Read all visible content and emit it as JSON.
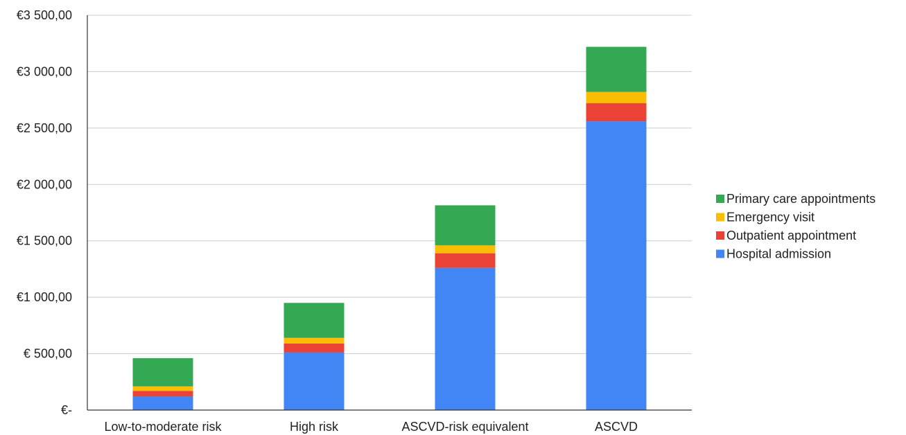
{
  "chart_data": {
    "type": "bar",
    "stacked": true,
    "title": "",
    "xlabel": "",
    "ylabel": "",
    "ylim": [
      0,
      3500
    ],
    "yticks": [
      {
        "value": 0,
        "label": "€-"
      },
      {
        "value": 500,
        "label": "€ 500,00"
      },
      {
        "value": 1000,
        "label": "€1 000,00"
      },
      {
        "value": 1500,
        "label": "€1 500,00"
      },
      {
        "value": 2000,
        "label": "€2 000,00"
      },
      {
        "value": 2500,
        "label": "€2 500,00"
      },
      {
        "value": 3000,
        "label": "€3 000,00"
      },
      {
        "value": 3500,
        "label": "€3 500,00"
      }
    ],
    "categories": [
      "Low-to-moderate risk",
      "High risk",
      "ASCVD-risk equivalent",
      "ASCVD"
    ],
    "series": [
      {
        "name": "Hospital admission",
        "color": "#4285f4",
        "values": [
          120,
          510,
          1260,
          2560
        ]
      },
      {
        "name": "Outpatient appointment",
        "color": "#ea4335",
        "values": [
          50,
          80,
          130,
          160
        ]
      },
      {
        "name": "Emergency visit",
        "color": "#fbbc04",
        "values": [
          40,
          50,
          70,
          100
        ]
      },
      {
        "name": "Primary care appointments",
        "color": "#34a853",
        "values": [
          250,
          310,
          355,
          400
        ]
      }
    ],
    "grid": true,
    "legend_position": "right"
  }
}
